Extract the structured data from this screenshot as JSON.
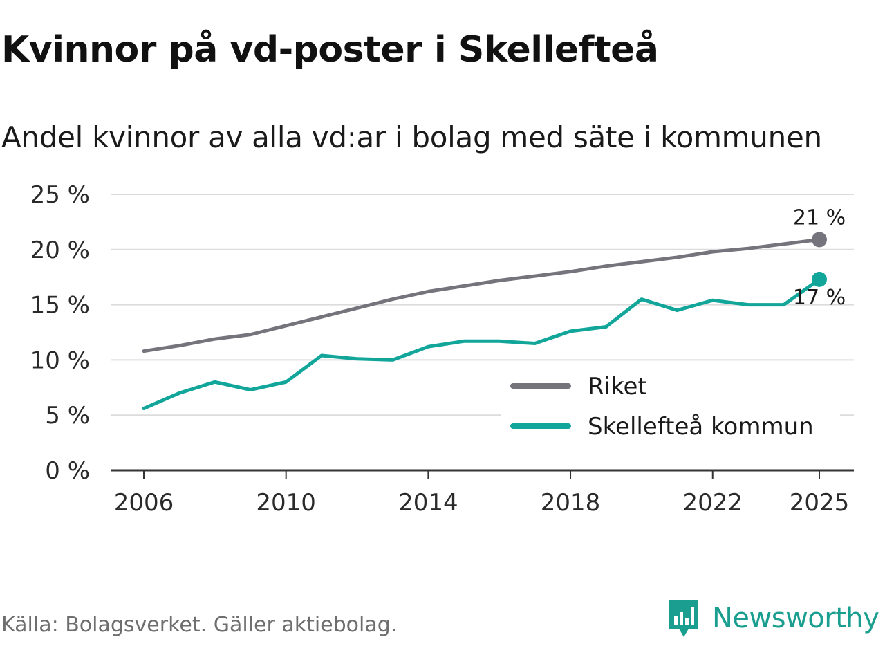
{
  "title": "Kvinnor på vd-poster i Skellefteå",
  "subtitle": "Andel kvinnor av alla vd:ar i bolag med säte i kommunen",
  "source": "Källa: Bolagsverket. Gäller aktiebolag.",
  "brand": "Newsworthy",
  "colors": {
    "riket": "#75747d",
    "kommun": "#12a69b",
    "grid": "#dcdcdc",
    "axis": "#333333",
    "brand": "#1a9e8f"
  },
  "chart_data": {
    "type": "line",
    "title": "Kvinnor på vd-poster i Skellefteå",
    "subtitle": "Andel kvinnor av alla vd:ar i bolag med säte i kommunen",
    "xlabel": "",
    "ylabel": "",
    "x": [
      2006,
      2007,
      2008,
      2009,
      2010,
      2011,
      2012,
      2013,
      2014,
      2015,
      2016,
      2017,
      2018,
      2019,
      2020,
      2021,
      2022,
      2023,
      2024,
      2025
    ],
    "xticks": [
      2006,
      2010,
      2014,
      2018,
      2022,
      2025
    ],
    "xtick_labels": [
      "2006",
      "2010",
      "2014",
      "2018",
      "2022",
      "2025"
    ],
    "yticks": [
      0,
      5,
      10,
      15,
      20,
      25
    ],
    "ytick_labels": [
      "0 %",
      "5 %",
      "10 %",
      "15 %",
      "20 %",
      "25 %"
    ],
    "xlim": [
      2005.0,
      2026.0
    ],
    "ylim": [
      0,
      25
    ],
    "grid": true,
    "legend_position": "bottom-right",
    "series": [
      {
        "name": "Riket",
        "color_key": "riket",
        "values": [
          10.8,
          11.3,
          11.9,
          12.3,
          13.1,
          13.9,
          14.7,
          15.5,
          16.2,
          16.7,
          17.2,
          17.6,
          18.0,
          18.5,
          18.9,
          19.3,
          19.8,
          20.1,
          20.5,
          20.9
        ],
        "end_label": "21 %"
      },
      {
        "name": "Skellefteå kommun",
        "color_key": "kommun",
        "values": [
          5.6,
          7.0,
          8.0,
          7.3,
          8.0,
          10.4,
          10.1,
          10.0,
          11.2,
          11.7,
          11.7,
          11.5,
          12.6,
          13.0,
          15.5,
          14.5,
          15.4,
          15.0,
          15.0,
          17.3
        ],
        "end_label": "17 %"
      }
    ]
  }
}
